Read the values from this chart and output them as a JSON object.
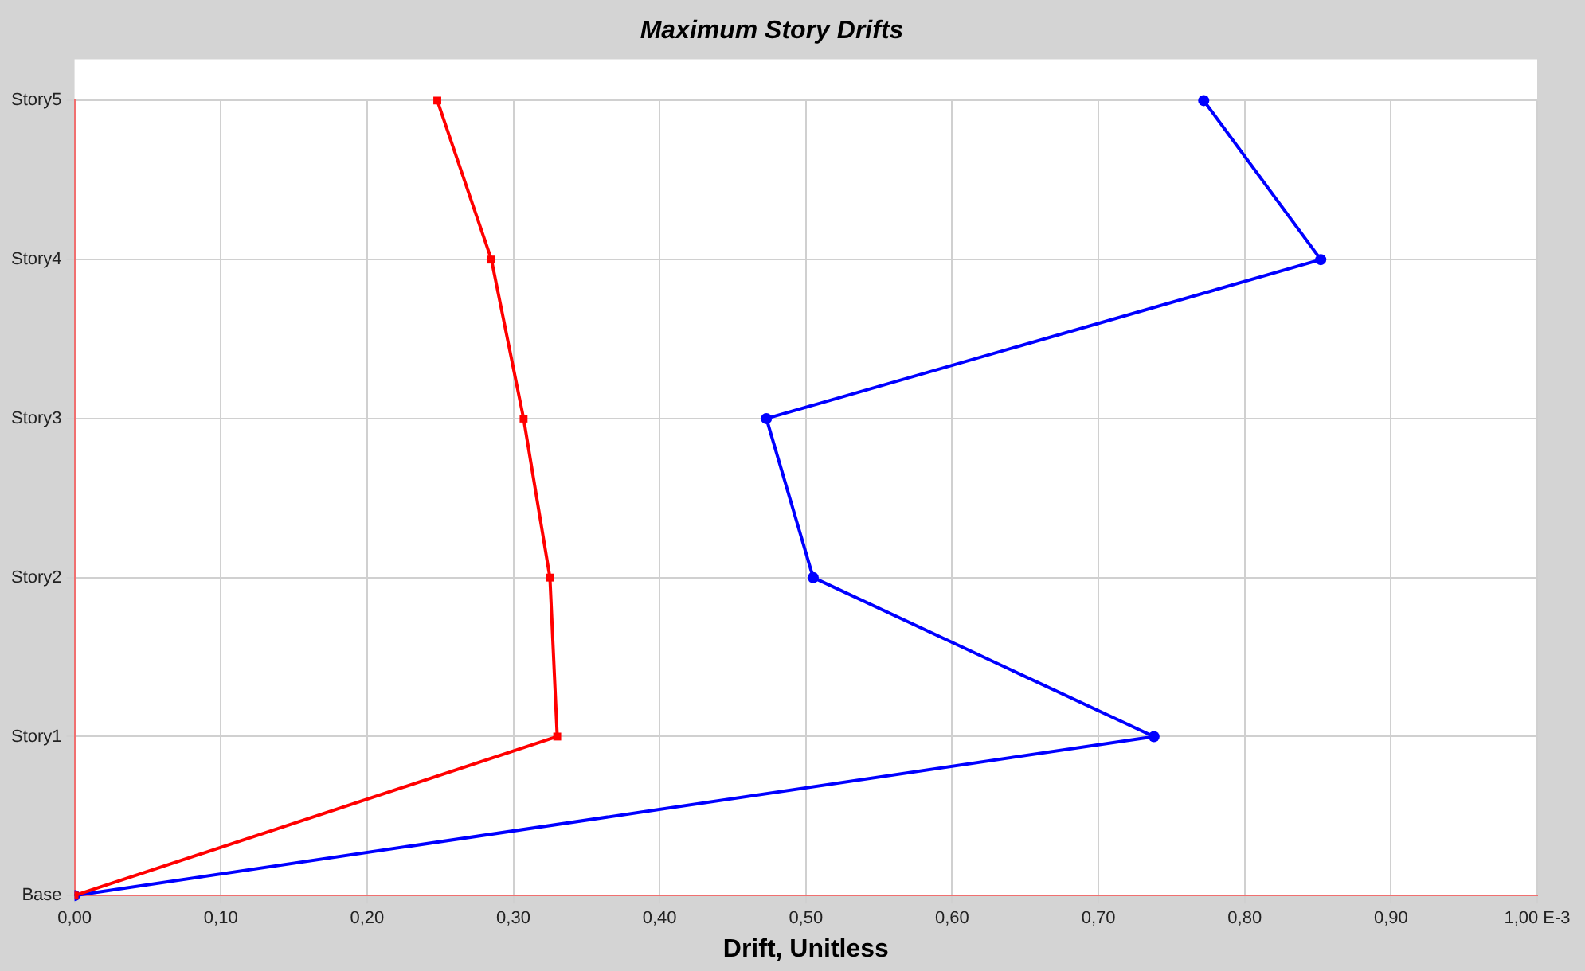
{
  "chart_data": {
    "type": "line",
    "title": "Maximum Story Drifts",
    "xlabel": "Drift, Unitless",
    "orientation": "horizontal",
    "categories": [
      "Story5",
      "Story4",
      "Story3",
      "Story2",
      "Story1",
      "Base"
    ],
    "xlim": [
      0,
      1
    ],
    "xticks": [
      {
        "value": 0,
        "label": "0,00"
      },
      {
        "value": 0.1,
        "label": "0,10"
      },
      {
        "value": 0.2,
        "label": "0,20"
      },
      {
        "value": 0.3,
        "label": "0,30"
      },
      {
        "value": 0.4,
        "label": "0,40"
      },
      {
        "value": 0.5,
        "label": "0,50"
      },
      {
        "value": 0.6,
        "label": "0,60"
      },
      {
        "value": 0.7,
        "label": "0,70"
      },
      {
        "value": 0.8,
        "label": "0,80"
      },
      {
        "value": 0.9,
        "label": "0,90"
      },
      {
        "value": 1,
        "label": "1,00 E-3"
      }
    ],
    "grid": true,
    "line_style": "solid",
    "series": [
      {
        "color": "#ff0000",
        "marker": "square",
        "values": [
          0.248,
          0.285,
          0.307,
          0.325,
          0.33,
          0
        ]
      },
      {
        "color": "#0000ff",
        "marker": "circle",
        "values": [
          0.772,
          0.852,
          0.473,
          0.505,
          0.738,
          0
        ]
      }
    ]
  }
}
